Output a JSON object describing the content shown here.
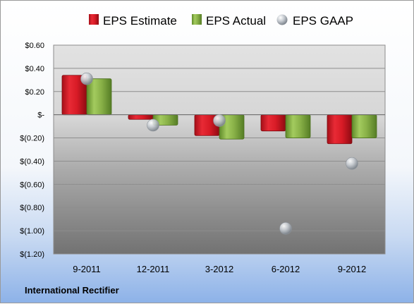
{
  "company": "International Rectifier",
  "chart_data": {
    "type": "bar",
    "categories": [
      "9-2011",
      "12-2011",
      "3-2012",
      "6-2012",
      "9-2012"
    ],
    "series": [
      {
        "name": "EPS Estimate",
        "values": [
          0.34,
          -0.04,
          -0.18,
          -0.14,
          -0.25
        ],
        "color": "#e01f2b"
      },
      {
        "name": "EPS Actual",
        "values": [
          0.31,
          -0.09,
          -0.21,
          -0.2,
          -0.2
        ],
        "color": "#8db64a"
      },
      {
        "name": "EPS GAAP",
        "values": [
          0.31,
          -0.09,
          -0.05,
          -0.98,
          -0.42
        ],
        "color": "#b9bfc6",
        "marker": "sphere"
      }
    ],
    "y_ticks": [
      "$0.60",
      "$0.40",
      "$0.20",
      "$-",
      "$(0.20)",
      "$(0.40)",
      "$(0.60)",
      "$(0.80)",
      "$(1.00)",
      "$(1.20)"
    ],
    "ylim": [
      -1.2,
      0.6
    ],
    "legend": "top",
    "grid": true
  }
}
